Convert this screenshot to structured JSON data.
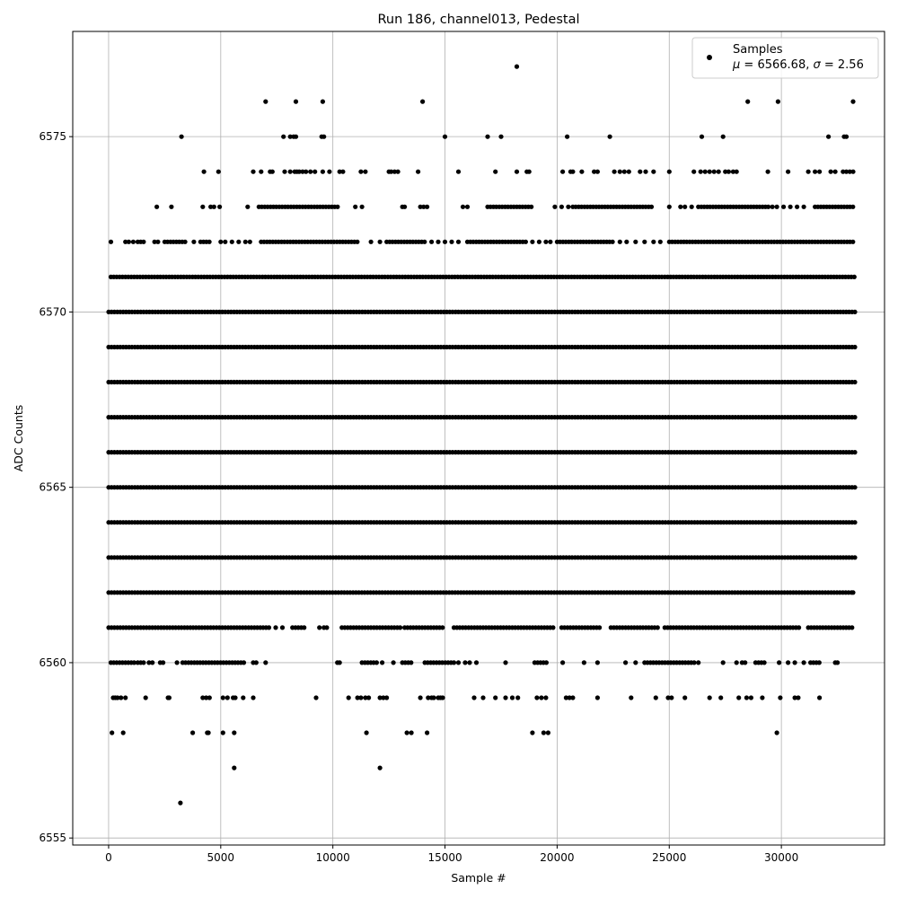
{
  "chart_data": {
    "type": "scatter",
    "title": "Run 186, channel013, Pedestal",
    "xlabel": "Sample #",
    "ylabel": "ADC Counts",
    "xlim": [
      -1600,
      34600
    ],
    "ylim": [
      6554.8,
      6578.0
    ],
    "xticks": [
      0,
      5000,
      10000,
      15000,
      20000,
      25000,
      30000
    ],
    "yticks": [
      6555,
      6560,
      6565,
      6570,
      6575
    ],
    "grid": true,
    "marker_color": "#000000",
    "legend": {
      "position": "top-right",
      "label": "Samples",
      "mu_label": "μ",
      "mu_value": "6566.68",
      "sigma_label": "σ",
      "sigma_value": "2.56"
    },
    "series": [
      {
        "name": "Samples",
        "n_samples": 33300,
        "levels": [
          {
            "y": 6556,
            "x": [
              3200
            ]
          },
          {
            "y": 6557,
            "x": [
              5600,
              12100
            ]
          },
          {
            "y": 6558,
            "x": [
              150,
              650,
              3750,
              4400,
              4450,
              5100,
              5600,
              11500,
              13300,
              13500,
              14200,
              18900,
              19400,
              19600,
              29800
            ]
          },
          {
            "y": 6559,
            "x": [
              200,
              300,
              400,
              550,
              750,
              1650,
              2650,
              2700,
              4200,
              4350,
              4500,
              5100,
              5300,
              5550,
              5650,
              6000,
              6450,
              9250,
              10700,
              11100,
              11250,
              11450,
              11600,
              12100,
              12250,
              12400,
              13900,
              14250,
              14400,
              14500,
              14700,
              14800,
              14900,
              16300,
              16700,
              17250,
              17700,
              18000,
              18250,
              19100,
              19300,
              19500,
              20400,
              20550,
              20700,
              21800,
              23300,
              24400,
              24950,
              25100,
              25700,
              26800,
              27300,
              28100,
              28450,
              28650,
              29150,
              29950,
              30600,
              30750,
              31700
            ]
          },
          {
            "y": 6560,
            "dense": [
              [
                100,
                1150
              ],
              [
                1300,
                1600
              ],
              [
                2300,
                2550
              ],
              [
                3300,
                6150
              ],
              [
                6450,
                6700
              ],
              [
                11300,
                12000
              ],
              [
                13100,
                13600
              ],
              [
                14100,
                15400
              ],
              [
                19000,
                19600
              ],
              [
                23900,
                26200
              ],
              [
                28250,
                28500
              ],
              [
                28850,
                29250
              ],
              [
                31300,
                31700
              ]
            ],
            "x": [
              1800,
              1950,
              3050,
              7000,
              10200,
              10300,
              12200,
              12700,
              15600,
              15900,
              16100,
              16400,
              17700,
              20250,
              21200,
              21800,
              23050,
              23500,
              26300,
              27400,
              28000,
              29900,
              30300,
              30600,
              31000,
              32400,
              32500
            ]
          },
          {
            "y": 6561,
            "dense": [
              [
                0,
                7200
              ],
              [
                8200,
                8800
              ],
              [
                9600,
                9800
              ],
              [
                10400,
                13000
              ],
              [
                13200,
                14900
              ],
              [
                15400,
                19900
              ],
              [
                20200,
                21900
              ],
              [
                22400,
                24500
              ],
              [
                24800,
                30900
              ],
              [
                31200,
                33200
              ]
            ],
            "x": [
              7450,
              7750,
              9400
            ]
          },
          {
            "y": 6562,
            "dense": [
              [
                0,
                9500
              ],
              [
                9600,
                33200
              ]
            ],
            "x": [
              33200
            ]
          },
          {
            "y": 6563,
            "dense": [
              [
                0,
                33300
              ]
            ]
          },
          {
            "y": 6564,
            "dense": [
              [
                0,
                33300
              ]
            ]
          },
          {
            "y": 6565,
            "dense": [
              [
                0,
                33300
              ]
            ]
          },
          {
            "y": 6566,
            "dense": [
              [
                0,
                33300
              ]
            ]
          },
          {
            "y": 6567,
            "dense": [
              [
                0,
                33300
              ]
            ]
          },
          {
            "y": 6568,
            "dense": [
              [
                0,
                33300
              ]
            ]
          },
          {
            "y": 6569,
            "dense": [
              [
                0,
                33300
              ]
            ]
          },
          {
            "y": 6570,
            "dense": [
              [
                0,
                33300
              ]
            ]
          },
          {
            "y": 6571,
            "dense": [
              [
                100,
                33300
              ]
            ]
          },
          {
            "y": 6572,
            "dense": [
              [
                1300,
                1600
              ],
              [
                2500,
                3500
              ],
              [
                4100,
                4500
              ],
              [
                6800,
                11200
              ],
              [
                12400,
                14200
              ],
              [
                16000,
                18700
              ],
              [
                20000,
                22500
              ],
              [
                25000,
                33300
              ]
            ],
            "x": [
              100,
              750,
              900,
              1100,
              2050,
              2200,
              3800,
              5000,
              5200,
              5500,
              5800,
              6100,
              6300,
              11700,
              12100,
              14400,
              14700,
              15000,
              15300,
              15600,
              18900,
              19200,
              19500,
              19700,
              22800,
              23100,
              23500,
              23900,
              24300,
              24600
            ]
          },
          {
            "y": 6573,
            "dense": [
              [
                6700,
                10300
              ],
              [
                16900,
                18900
              ],
              [
                20700,
                24300
              ],
              [
                26300,
                29500
              ],
              [
                31500,
                33300
              ]
            ],
            "x": [
              2150,
              2800,
              4200,
              4550,
              4700,
              4950,
              6200,
              11000,
              11300,
              13100,
              13200,
              13900,
              14050,
              14200,
              15800,
              16000,
              19900,
              20200,
              20500,
              25000,
              25500,
              25700,
              26000,
              29600,
              29800,
              30100,
              30400,
              30700,
              31000
            ]
          },
          {
            "y": 6574,
            "x": [
              4250,
              4900,
              6450,
              6800,
              7200,
              7300,
              7850,
              8100,
              8300,
              8400,
              8500,
              8650,
              8800,
              9000,
              9200,
              9550,
              9850,
              10300,
              10450,
              11250,
              11450,
              12500,
              12600,
              12750,
              12900,
              13800,
              15600,
              17250,
              18200,
              18650,
              18750,
              20250,
              20600,
              20700,
              21100,
              21650,
              21800,
              22550,
              22800,
              23000,
              23200,
              23700,
              23950,
              24300,
              25000,
              26100,
              26400,
              26600,
              26800,
              27000,
              27200,
              27500,
              27650,
              27850,
              28000,
              29400,
              30300,
              31200,
              31500,
              31700,
              32200,
              32400,
              32750,
              32900,
              33050,
              33200
            ]
          },
          {
            "y": 6575,
            "x": [
              3250,
              7800,
              8100,
              8250,
              8350,
              9500,
              9600,
              15000,
              16900,
              17500,
              20450,
              22350,
              26450,
              27400,
              32100,
              32800,
              32900
            ]
          },
          {
            "y": 6576,
            "x": [
              7000,
              8350,
              9550,
              14000,
              28500,
              29850,
              33200
            ]
          },
          {
            "y": 6577,
            "x": [
              18200
            ]
          }
        ]
      }
    ]
  }
}
